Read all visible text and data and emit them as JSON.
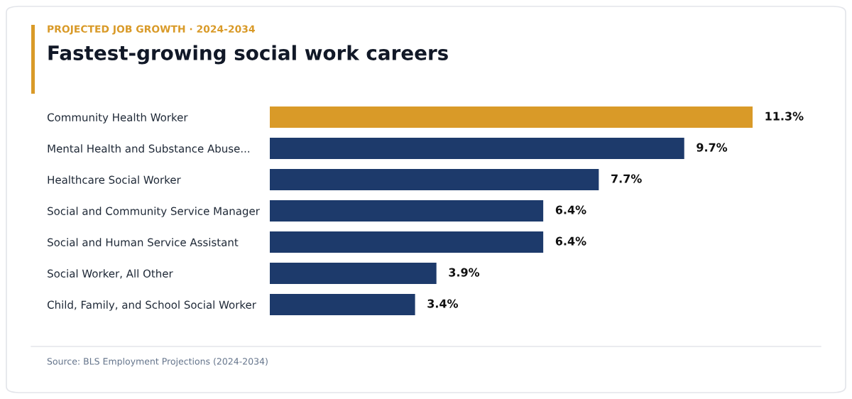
{
  "chart_data": {
    "type": "bar",
    "orientation": "horizontal",
    "subtitle": "PROJECTED JOB GROWTH · 2024-2034",
    "title": "Fastest-growing social work careers",
    "categories": [
      "Community Health Worker",
      "Mental Health and Substance Abuse...",
      "Healthcare Social Worker",
      "Social and Community Service Manager",
      "Social and Human Service Assistant",
      "Social Worker, All Other",
      "Child, Family, and School Social Worker"
    ],
    "values": [
      11.3,
      9.7,
      7.7,
      6.4,
      6.4,
      3.9,
      3.4
    ],
    "colors": [
      "#d99a28",
      "#1d3a6b",
      "#1d3a6b",
      "#1d3a6b",
      "#1d3a6b",
      "#1d3a6b",
      "#1d3a6b"
    ],
    "value_labels": [
      "11.3%",
      "9.7%",
      "7.7%",
      "6.4%",
      "6.4%",
      "3.9%",
      "3.4%"
    ],
    "annotations": [
      "Source: BLS Employment Projections (2024-2034)"
    ],
    "grid": false,
    "legend": false
  }
}
